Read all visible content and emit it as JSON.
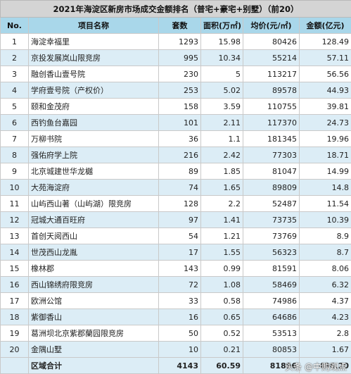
{
  "title": "2021年海淀区新房市场成交金额排名（普宅+豪宅+别墅）（前20）",
  "headers": {
    "no": "No.",
    "name": "项目名称",
    "units": "套数",
    "area": "面积(万㎡)",
    "price": "均价(元/㎡)",
    "amount": "金额(亿元)"
  },
  "rows": [
    {
      "no": "1",
      "name": "海淀幸福里",
      "units": "1293",
      "area": "15.98",
      "price": "80426",
      "amount": "128.49"
    },
    {
      "no": "2",
      "name": "京投发展岚山限竞房",
      "units": "995",
      "area": "10.34",
      "price": "55214",
      "amount": "57.11"
    },
    {
      "no": "3",
      "name": "融创香山壹号院",
      "units": "230",
      "area": "5",
      "price": "113217",
      "amount": "56.56"
    },
    {
      "no": "4",
      "name": "学府壹号院（产权价）",
      "units": "253",
      "area": "5.02",
      "price": "89578",
      "amount": "44.93"
    },
    {
      "no": "5",
      "name": "颐和金茂府",
      "units": "158",
      "area": "3.59",
      "price": "110755",
      "amount": "39.81"
    },
    {
      "no": "6",
      "name": "西钓鱼台嘉园",
      "units": "101",
      "area": "2.11",
      "price": "117370",
      "amount": "24.73"
    },
    {
      "no": "7",
      "name": "万柳书院",
      "units": "36",
      "area": "1.1",
      "price": "181345",
      "amount": "19.96"
    },
    {
      "no": "8",
      "name": "强佑府学上院",
      "units": "216",
      "area": "2.42",
      "price": "77303",
      "amount": "18.71"
    },
    {
      "no": "9",
      "name": "北京城建世华龙樾",
      "units": "89",
      "area": "1.85",
      "price": "81047",
      "amount": "14.99"
    },
    {
      "no": "10",
      "name": "大苑海淀府",
      "units": "74",
      "area": "1.65",
      "price": "89809",
      "amount": "14.8"
    },
    {
      "no": "11",
      "name": "山屿西山著（山屿湖）限竞房",
      "units": "128",
      "area": "2.2",
      "price": "52487",
      "amount": "11.54"
    },
    {
      "no": "12",
      "name": "冠城大通百旺府",
      "units": "97",
      "area": "1.41",
      "price": "73735",
      "amount": "10.39"
    },
    {
      "no": "13",
      "name": "首创天阅西山",
      "units": "54",
      "area": "1.21",
      "price": "73769",
      "amount": "8.9"
    },
    {
      "no": "14",
      "name": "世茂西山龙胤",
      "units": "17",
      "area": "1.55",
      "price": "56323",
      "amount": "8.7"
    },
    {
      "no": "15",
      "name": "橡林郡",
      "units": "143",
      "area": "0.99",
      "price": "81591",
      "amount": "8.06"
    },
    {
      "no": "16",
      "name": "西山锦绣府限竞房",
      "units": "72",
      "units_note": "",
      "area": "1.08",
      "price": "58469",
      "amount": "6.32"
    },
    {
      "no": "17",
      "name": "欧洲公馆",
      "units": "33",
      "area": "0.58",
      "price": "74986",
      "amount": "4.37"
    },
    {
      "no": "18",
      "name": "紫御香山",
      "units": "16",
      "area": "0.65",
      "price": "64686",
      "amount": "4.23"
    },
    {
      "no": "19",
      "name": "葛洲坝北京紫郡蘭园限竞房",
      "units": "50",
      "area": "0.52",
      "price": "53513",
      "amount": "2.8"
    },
    {
      "no": "20",
      "name": "金隅山墅",
      "units": "10",
      "area": "0.21",
      "price": "80853",
      "amount": "1.67"
    }
  ],
  "total": {
    "label": "区域合计",
    "units": "4143",
    "area": "60.59",
    "price": "81896",
    "amount": "496.20"
  },
  "watermark": "头条 @中购观点",
  "colors": {
    "title_bg": "#d4d4d4",
    "header_bg": "#a9d7ea",
    "stripe_bg": "#dcedf6",
    "border": "#c9c9c9"
  }
}
